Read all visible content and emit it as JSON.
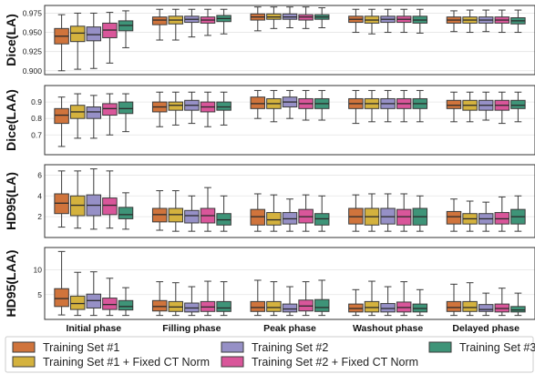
{
  "chart_data": {
    "type": "box",
    "categories": [
      "Initial phase",
      "Filling phase",
      "Peak phase",
      "Washout phase",
      "Delayed phase"
    ],
    "series_names": [
      "Training Set #1",
      "Training Set #1 + Fixed CT Norm",
      "Training Set #2",
      "Training Set #2 + Fixed CT Norm",
      "Training Set #3"
    ],
    "colors": [
      "#d0743c",
      "#d4b23e",
      "#9690c6",
      "#d9569a",
      "#3e9478"
    ],
    "legend_position": "bottom",
    "grid": true,
    "panels": [
      {
        "ylabel": "Dice(LA)",
        "ylim": [
          0.895,
          0.985
        ],
        "yticks": [
          "0.900",
          "0.925",
          "0.950",
          "0.975"
        ],
        "ytick_values": [
          0.9,
          0.925,
          0.95,
          0.975
        ],
        "boxes": [
          [
            [
              0.9,
              0.935,
              0.945,
              0.955,
              0.973
            ],
            [
              0.902,
              0.938,
              0.949,
              0.958,
              0.975
            ],
            [
              0.903,
              0.939,
              0.947,
              0.957,
              0.975
            ],
            [
              0.91,
              0.943,
              0.953,
              0.962,
              0.976
            ],
            [
              0.93,
              0.952,
              0.959,
              0.965,
              0.978
            ]
          ],
          [
            [
              0.94,
              0.96,
              0.966,
              0.97,
              0.98
            ],
            [
              0.94,
              0.961,
              0.966,
              0.971,
              0.98
            ],
            [
              0.944,
              0.963,
              0.967,
              0.971,
              0.98
            ],
            [
              0.946,
              0.962,
              0.966,
              0.97,
              0.98
            ],
            [
              0.948,
              0.964,
              0.968,
              0.972,
              0.98
            ]
          ],
          [
            [
              0.952,
              0.966,
              0.97,
              0.974,
              0.983
            ],
            [
              0.955,
              0.967,
              0.97,
              0.974,
              0.983
            ],
            [
              0.956,
              0.967,
              0.97,
              0.974,
              0.983
            ],
            [
              0.955,
              0.966,
              0.97,
              0.973,
              0.983
            ],
            [
              0.956,
              0.967,
              0.97,
              0.973,
              0.982
            ]
          ],
          [
            [
              0.95,
              0.963,
              0.967,
              0.971,
              0.98
            ],
            [
              0.948,
              0.962,
              0.966,
              0.971,
              0.98
            ],
            [
              0.95,
              0.963,
              0.967,
              0.971,
              0.98
            ],
            [
              0.95,
              0.963,
              0.967,
              0.971,
              0.98
            ],
            [
              0.949,
              0.962,
              0.966,
              0.971,
              0.98
            ]
          ],
          [
            [
              0.951,
              0.962,
              0.966,
              0.97,
              0.978
            ],
            [
              0.95,
              0.962,
              0.966,
              0.97,
              0.979
            ],
            [
              0.951,
              0.962,
              0.966,
              0.97,
              0.979
            ],
            [
              0.95,
              0.962,
              0.966,
              0.97,
              0.979
            ],
            [
              0.95,
              0.961,
              0.965,
              0.969,
              0.979
            ]
          ]
        ]
      },
      {
        "ylabel": "Dice(LAA)",
        "ylim": [
          0.58,
          1.0
        ],
        "yticks": [
          "0.7",
          "0.8",
          "0.9"
        ],
        "ytick_values": [
          0.7,
          0.8,
          0.9
        ],
        "boxes": [
          [
            [
              0.63,
              0.77,
              0.82,
              0.86,
              0.93
            ],
            [
              0.68,
              0.8,
              0.84,
              0.88,
              0.95
            ],
            [
              0.68,
              0.8,
              0.84,
              0.87,
              0.94
            ],
            [
              0.7,
              0.82,
              0.86,
              0.89,
              0.95
            ],
            [
              0.72,
              0.83,
              0.86,
              0.9,
              0.95
            ]
          ],
          [
            [
              0.75,
              0.84,
              0.87,
              0.9,
              0.96
            ],
            [
              0.76,
              0.85,
              0.88,
              0.9,
              0.96
            ],
            [
              0.77,
              0.85,
              0.88,
              0.91,
              0.96
            ],
            [
              0.75,
              0.84,
              0.87,
              0.9,
              0.96
            ],
            [
              0.76,
              0.85,
              0.87,
              0.9,
              0.96
            ]
          ],
          [
            [
              0.8,
              0.86,
              0.89,
              0.93,
              0.97
            ],
            [
              0.78,
              0.86,
              0.89,
              0.92,
              0.97
            ],
            [
              0.8,
              0.87,
              0.9,
              0.93,
              0.97
            ],
            [
              0.79,
              0.86,
              0.89,
              0.92,
              0.97
            ],
            [
              0.79,
              0.86,
              0.89,
              0.92,
              0.97
            ]
          ],
          [
            [
              0.77,
              0.86,
              0.89,
              0.92,
              0.97
            ],
            [
              0.78,
              0.86,
              0.89,
              0.92,
              0.97
            ],
            [
              0.78,
              0.86,
              0.89,
              0.92,
              0.97
            ],
            [
              0.78,
              0.86,
              0.89,
              0.92,
              0.97
            ],
            [
              0.78,
              0.86,
              0.89,
              0.92,
              0.97
            ]
          ],
          [
            [
              0.78,
              0.86,
              0.88,
              0.91,
              0.96
            ],
            [
              0.78,
              0.85,
              0.88,
              0.91,
              0.96
            ],
            [
              0.79,
              0.85,
              0.88,
              0.91,
              0.96
            ],
            [
              0.77,
              0.85,
              0.88,
              0.91,
              0.96
            ],
            [
              0.78,
              0.86,
              0.88,
              0.91,
              0.96
            ]
          ]
        ]
      },
      {
        "ylabel": "HD95(LA)",
        "ylim": [
          0.0,
          7.0
        ],
        "yticks": [
          "2",
          "4",
          "6"
        ],
        "ytick_values": [
          2,
          4,
          6
        ],
        "boxes": [
          [
            [
              1.0,
              2.3,
              3.3,
              4.2,
              6.4
            ],
            [
              0.9,
              2.1,
              3.1,
              4.0,
              6.4
            ],
            [
              0.8,
              2.1,
              3.1,
              4.1,
              6.6
            ],
            [
              0.9,
              2.2,
              3.1,
              3.8,
              6.4
            ],
            [
              0.8,
              1.8,
              2.2,
              2.9,
              4.3
            ]
          ],
          [
            [
              0.7,
              1.5,
              2.2,
              2.8,
              4.5
            ],
            [
              0.6,
              1.5,
              2.2,
              2.8,
              4.5
            ],
            [
              0.6,
              1.4,
              2.1,
              2.6,
              4.0
            ],
            [
              0.6,
              1.4,
              2.1,
              2.8,
              4.8
            ],
            [
              0.6,
              1.2,
              1.7,
              2.3,
              4.0
            ]
          ],
          [
            [
              0.6,
              1.2,
              2.0,
              2.7,
              4.2
            ],
            [
              0.6,
              1.2,
              1.7,
              2.4,
              4.1
            ],
            [
              0.6,
              1.3,
              1.8,
              2.4,
              3.7
            ],
            [
              0.6,
              1.4,
              2.0,
              2.7,
              4.1
            ],
            [
              0.6,
              1.2,
              1.8,
              2.3,
              4.0
            ]
          ],
          [
            [
              0.6,
              1.3,
              2.0,
              2.8,
              4.1
            ],
            [
              0.6,
              1.2,
              2.0,
              2.8,
              4.2
            ],
            [
              0.6,
              1.3,
              2.0,
              2.8,
              4.2
            ],
            [
              0.6,
              1.2,
              2.0,
              2.7,
              4.2
            ],
            [
              0.6,
              1.2,
              2.0,
              2.8,
              4.0
            ]
          ],
          [
            [
              0.6,
              1.3,
              2.0,
              2.5,
              3.7
            ],
            [
              0.6,
              1.3,
              1.8,
              2.3,
              3.5
            ],
            [
              0.6,
              1.3,
              1.8,
              2.3,
              3.4
            ],
            [
              0.6,
              1.3,
              1.8,
              2.4,
              3.9
            ],
            [
              0.6,
              1.3,
              2.0,
              2.7,
              4.0
            ]
          ]
        ]
      },
      {
        "ylabel": "HD95(LAA)",
        "ylim": [
          0.0,
          14.5
        ],
        "yticks": [
          "5",
          "10"
        ],
        "ytick_values": [
          5,
          10
        ],
        "boxes": [
          [
            [
              0.9,
              2.6,
              4.2,
              6.2,
              13.7
            ],
            [
              0.8,
              2.0,
              3.2,
              4.7,
              9.5
            ],
            [
              0.8,
              2.3,
              3.8,
              5.1,
              9.6
            ],
            [
              0.8,
              2.0,
              3.0,
              4.3,
              8.3
            ],
            [
              0.8,
              1.9,
              2.6,
              3.8,
              6.4
            ]
          ],
          [
            [
              0.8,
              1.7,
              2.6,
              3.8,
              7.6
            ],
            [
              0.8,
              1.6,
              2.5,
              3.6,
              7.4
            ],
            [
              0.8,
              1.5,
              2.3,
              3.3,
              6.6
            ],
            [
              0.8,
              1.6,
              2.5,
              3.6,
              7.7
            ],
            [
              0.8,
              1.6,
              2.3,
              3.6,
              7.6
            ]
          ],
          [
            [
              0.8,
              1.6,
              2.4,
              3.6,
              7.9
            ],
            [
              0.8,
              1.6,
              2.4,
              3.6,
              7.6
            ],
            [
              0.8,
              1.5,
              2.1,
              3.1,
              6.6
            ],
            [
              0.8,
              1.7,
              2.7,
              3.9,
              7.6
            ],
            [
              0.8,
              1.6,
              2.4,
              4.0,
              7.9
            ]
          ],
          [
            [
              0.8,
              1.5,
              2.2,
              3.1,
              6.0
            ],
            [
              0.8,
              1.5,
              2.4,
              3.6,
              7.7
            ],
            [
              0.8,
              1.5,
              2.2,
              3.2,
              6.6
            ],
            [
              0.8,
              1.5,
              2.4,
              3.5,
              7.6
            ],
            [
              0.8,
              1.5,
              2.2,
              3.1,
              6.0
            ]
          ],
          [
            [
              0.8,
              1.6,
              2.4,
              3.6,
              7.1
            ],
            [
              0.8,
              1.6,
              2.4,
              3.6,
              7.4
            ],
            [
              0.8,
              1.6,
              2.0,
              3.0,
              5.3
            ],
            [
              0.8,
              1.5,
              2.2,
              3.1,
              6.3
            ],
            [
              0.8,
              1.5,
              1.9,
              2.6,
              5.3
            ]
          ]
        ]
      }
    ]
  }
}
